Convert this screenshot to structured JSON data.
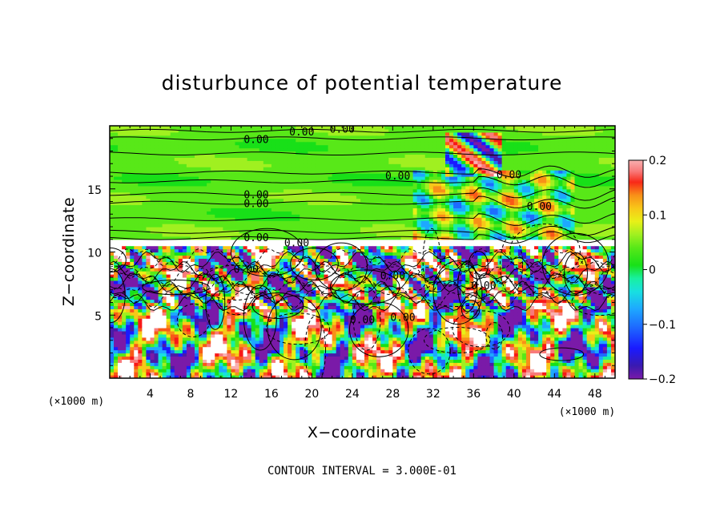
{
  "chart_data": {
    "type": "heatmap",
    "title": "disturbunce of potential temperature",
    "xlabel": "X−coordinate",
    "ylabel": "Z−coordinate",
    "x_unit": "(×1000 m)",
    "y_unit": "(×1000 m)",
    "xlim": [
      0,
      50
    ],
    "ylim": [
      0,
      20
    ],
    "x_ticks": [
      4,
      8,
      12,
      16,
      20,
      24,
      28,
      32,
      36,
      40,
      44,
      48
    ],
    "x_tick_labels": [
      "4",
      "8",
      "12",
      "16",
      "20",
      "24",
      "28",
      "32",
      "36",
      "40",
      "44",
      "48"
    ],
    "y_ticks": [
      5,
      10,
      15
    ],
    "y_tick_labels": [
      "5",
      "10",
      "15"
    ],
    "colorbar": {
      "range": [
        -0.2,
        0.2
      ],
      "ticks": [
        0.2,
        0.1,
        0,
        -0.1,
        -0.2
      ],
      "tick_labels": [
        "0.2",
        "0.1",
        "0",
        "−0.1",
        "−0.2"
      ],
      "colors": [
        "#7a1aa8",
        "#4a1aa8",
        "#1a1aff",
        "#1e6cff",
        "#1ea8ff",
        "#18e0e0",
        "#18f0a0",
        "#18e018",
        "#58e818",
        "#a0f020",
        "#e8f018",
        "#f8c818",
        "#f89018",
        "#f85818",
        "#f81818",
        "#f87a7a",
        "#f8b0b0"
      ]
    },
    "contour_labels": [
      {
        "x": 19.0,
        "y": 19.5,
        "text": "0.00"
      },
      {
        "x": 14.5,
        "y": 18.9,
        "text": "0.00"
      },
      {
        "x": 23.0,
        "y": 19.7,
        "text": "0.00"
      },
      {
        "x": 28.5,
        "y": 16.0,
        "text": "0.00"
      },
      {
        "x": 39.5,
        "y": 16.1,
        "text": "0.00"
      },
      {
        "x": 14.5,
        "y": 14.5,
        "text": "0.00"
      },
      {
        "x": 14.5,
        "y": 13.8,
        "text": "0.00"
      },
      {
        "x": 14.5,
        "y": 11.1,
        "text": "0.00"
      },
      {
        "x": 18.5,
        "y": 10.7,
        "text": "0.00"
      },
      {
        "x": 13.5,
        "y": 8.6,
        "text": "0.00"
      },
      {
        "x": 28.0,
        "y": 8.1,
        "text": "0.00"
      },
      {
        "x": 37.0,
        "y": 7.3,
        "text": "0.00"
      },
      {
        "x": 25.0,
        "y": 4.6,
        "text": "0.00"
      },
      {
        "x": 29.0,
        "y": 4.8,
        "text": "0.00"
      },
      {
        "x": 42.5,
        "y": 13.6,
        "text": "0.00"
      }
    ],
    "contour_interval_text": "CONTOUR INTERVAL = 3.000E-01"
  }
}
